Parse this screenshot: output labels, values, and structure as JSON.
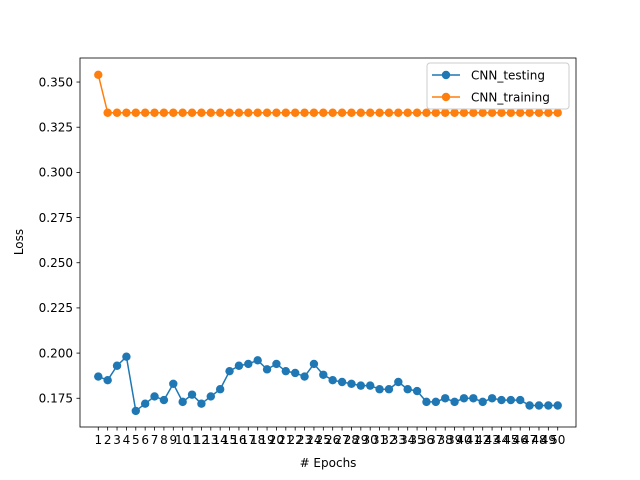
{
  "chart_data": {
    "type": "line",
    "title": "",
    "xlabel": "# Epochs",
    "ylabel": "Loss",
    "x": [
      1,
      2,
      3,
      4,
      5,
      6,
      7,
      8,
      9,
      10,
      11,
      12,
      13,
      14,
      15,
      16,
      17,
      18,
      19,
      20,
      21,
      22,
      23,
      24,
      25,
      26,
      27,
      28,
      29,
      30,
      31,
      32,
      33,
      34,
      35,
      36,
      37,
      38,
      39,
      40,
      41,
      42,
      43,
      44,
      45,
      46,
      47,
      48,
      49,
      50
    ],
    "xtick_labels": [
      "1",
      "2",
      "3",
      "4",
      "5",
      "6",
      "7",
      "8",
      "9",
      "10",
      "11",
      "12",
      "13",
      "14",
      "15",
      "16",
      "17",
      "18",
      "19",
      "20",
      "21",
      "22",
      "23",
      "24",
      "25",
      "26",
      "27",
      "28",
      "29",
      "30",
      "31",
      "32",
      "33",
      "34",
      "35",
      "36",
      "37",
      "38",
      "39",
      "40",
      "41",
      "42",
      "43",
      "44",
      "45",
      "46",
      "47",
      "48",
      "49",
      "50"
    ],
    "xlim": [
      -0.95,
      51.95
    ],
    "ylim": [
      0.1591,
      0.3633
    ],
    "yticks": [
      0.175,
      0.2,
      0.225,
      0.25,
      0.275,
      0.3,
      0.325,
      0.35
    ],
    "ytick_labels": [
      "0.175",
      "0.200",
      "0.225",
      "0.250",
      "0.275",
      "0.300",
      "0.325",
      "0.350"
    ],
    "grid": false,
    "legend_position": "top-right",
    "series": [
      {
        "name": "CNN_testing",
        "color": "#1f77b4",
        "marker": "circle",
        "values": [
          0.187,
          0.185,
          0.193,
          0.198,
          0.168,
          0.172,
          0.176,
          0.174,
          0.183,
          0.173,
          0.177,
          0.172,
          0.176,
          0.18,
          0.19,
          0.193,
          0.194,
          0.196,
          0.191,
          0.194,
          0.19,
          0.189,
          0.187,
          0.194,
          0.188,
          0.185,
          0.184,
          0.183,
          0.182,
          0.182,
          0.18,
          0.18,
          0.184,
          0.18,
          0.179,
          0.173,
          0.173,
          0.175,
          0.173,
          0.175,
          0.175,
          0.173,
          0.175,
          0.174,
          0.174,
          0.174,
          0.171,
          0.171,
          0.171,
          0.171
        ]
      },
      {
        "name": "CNN_training",
        "color": "#ff7f0e",
        "marker": "circle",
        "values": [
          0.354,
          0.333,
          0.333,
          0.333,
          0.333,
          0.333,
          0.333,
          0.333,
          0.333,
          0.333,
          0.333,
          0.333,
          0.333,
          0.333,
          0.333,
          0.333,
          0.333,
          0.333,
          0.333,
          0.333,
          0.333,
          0.333,
          0.333,
          0.333,
          0.333,
          0.333,
          0.333,
          0.333,
          0.333,
          0.333,
          0.333,
          0.333,
          0.333,
          0.333,
          0.333,
          0.333,
          0.333,
          0.333,
          0.333,
          0.333,
          0.333,
          0.333,
          0.333,
          0.333,
          0.333,
          0.333,
          0.333,
          0.333,
          0.333,
          0.333
        ]
      }
    ]
  }
}
